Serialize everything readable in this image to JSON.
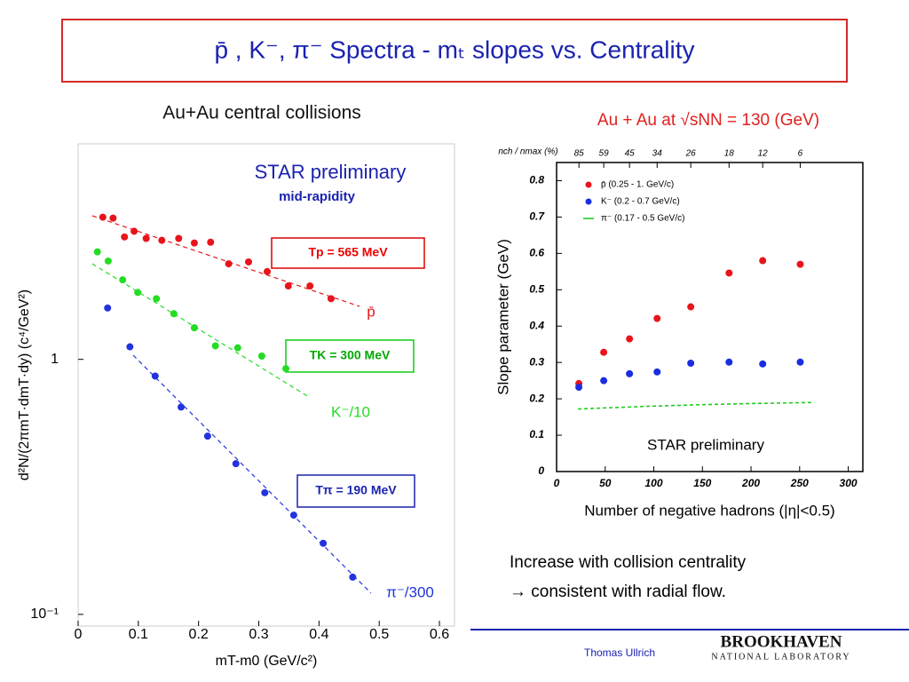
{
  "slide": {
    "title": "p̄ , K⁻, π⁻  Spectra - mₜ slopes vs. Centrality",
    "body": [
      "Increase with collision centrality",
      "→ consistent with radial flow."
    ],
    "author": "Thomas Ullrich",
    "logo": [
      "BROOKHAVEN",
      "NATIONAL LABORATORY"
    ]
  },
  "chart_data": [
    {
      "type": "scatter",
      "title": "Au+Au central collisions",
      "x_label": "mT-m0 (GeV/c²)",
      "y_label": "d²N/(2πmT·dmT·dy) (c⁴/GeV²)",
      "log_y": true,
      "xlim": [
        0,
        0.625
      ],
      "ylim": [
        0.09,
        7
      ],
      "xticks": [
        0,
        0.1,
        0.2,
        0.3,
        0.4,
        0.5,
        0.6
      ],
      "yticks": [
        {
          "value": 0.1,
          "label": "10⁻¹"
        },
        1
      ],
      "annotations": [
        "STAR preliminary",
        "mid-rapidity",
        "Tp = 565 MeV",
        "TK = 300 MeV",
        "Tπ = 190 MeV"
      ],
      "series": [
        {
          "name": "p̄",
          "color": "#e8141b",
          "x": [
            0.041,
            0.058,
            0.077,
            0.093,
            0.113,
            0.139,
            0.167,
            0.193,
            0.22,
            0.25,
            0.283,
            0.314,
            0.349,
            0.385,
            0.42
          ],
          "values": [
            3.61,
            3.58,
            3.02,
            3.18,
            2.98,
            2.93,
            2.98,
            2.86,
            2.88,
            2.37,
            2.41,
            2.21,
            1.94,
            1.94,
            1.73
          ]
        },
        {
          "name": "K⁻/10",
          "color": "#22dd22",
          "x": [
            0.032,
            0.05,
            0.074,
            0.099,
            0.13,
            0.159,
            0.193,
            0.228,
            0.265,
            0.305,
            0.345
          ],
          "values": [
            2.64,
            2.43,
            2.05,
            1.83,
            1.73,
            1.51,
            1.33,
            1.13,
            1.11,
            1.03,
            0.92
          ]
        },
        {
          "name": "π⁻/300",
          "color": "#2233dd",
          "x": [
            0.049,
            0.086,
            0.128,
            0.171,
            0.215,
            0.262,
            0.31,
            0.358,
            0.407,
            0.456
          ],
          "values": [
            1.59,
            1.12,
            0.86,
            0.65,
            0.5,
            0.39,
            0.3,
            0.245,
            0.19,
            0.14
          ]
        }
      ]
    },
    {
      "type": "scatter",
      "title": "Au + Au at √sNN = 130 (GeV)",
      "x_label": "Number of negative hadrons (|η|<0.5)",
      "y_label": "Slope parameter (GeV)",
      "x2_label": "nch / nmax (%)",
      "xlim": [
        0,
        315
      ],
      "ylim": [
        0,
        0.85
      ],
      "xticks": [
        0,
        50,
        100,
        150,
        200,
        250,
        300
      ],
      "yticks": [
        0,
        0.1,
        0.2,
        0.3,
        0.4,
        0.5,
        0.6,
        0.7,
        0.8
      ],
      "x2ticks": [
        {
          "value": 23,
          "label": "85"
        },
        {
          "value": 48.5,
          "label": "59"
        },
        {
          "value": 75,
          "label": "45"
        },
        {
          "value": 103.4,
          "label": "34"
        },
        {
          "value": 138,
          "label": "26"
        },
        {
          "value": 177.4,
          "label": "18"
        },
        {
          "value": 212,
          "label": "12"
        },
        {
          "value": 250.6,
          "label": "6"
        }
      ],
      "legend": "upper left",
      "annotations": [
        "STAR preliminary"
      ],
      "series": [
        {
          "name": "p̄  (0.25 - 1. GeV/c)",
          "color": "#e8141b",
          "x": [
            22.9,
            48.5,
            75,
            103.4,
            138,
            177.4,
            212,
            250.6
          ],
          "values": [
            0.242,
            0.328,
            0.365,
            0.421,
            0.453,
            0.546,
            0.58,
            0.57
          ]
        },
        {
          "name": "K⁻  (0.2 - 0.7 GeV/c)",
          "color": "#1a2ee0",
          "x": [
            22.9,
            48.5,
            75,
            103.4,
            138,
            177.4,
            212,
            250.6
          ],
          "values": [
            0.232,
            0.25,
            0.269,
            0.274,
            0.298,
            0.301,
            0.296,
            0.301
          ]
        },
        {
          "name": "π⁻  (0.17 - 0.5 GeV/c)",
          "color": "#22cc22",
          "style": "dashed-line",
          "x": [
            22,
            50,
            100,
            150,
            200,
            265
          ],
          "values": [
            0.172,
            0.175,
            0.18,
            0.184,
            0.187,
            0.19
          ]
        }
      ]
    }
  ]
}
